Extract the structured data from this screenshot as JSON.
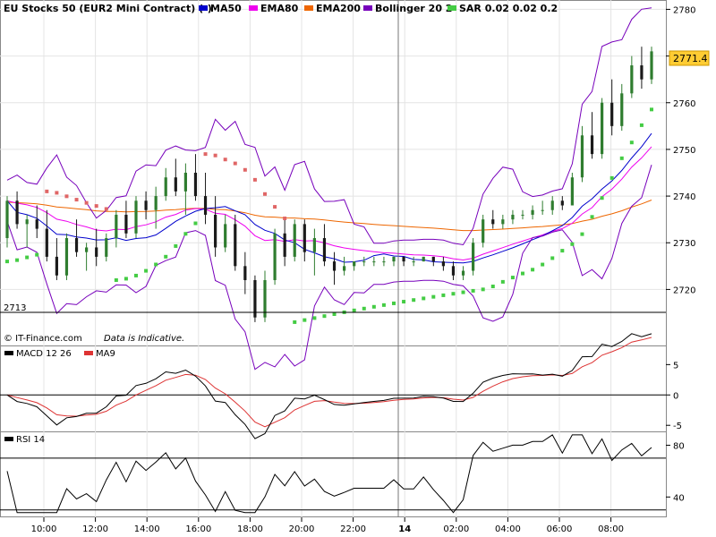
{
  "header": {
    "instrument": "EU Stocks 50 (EUR2 Mini Contract) (-)",
    "legend": [
      {
        "label": "MA50",
        "color": "#0000cc"
      },
      {
        "label": "EMA80",
        "color": "#ee00ee"
      },
      {
        "label": "EMA200",
        "color": "#ee6600"
      },
      {
        "label": "Bollinger 20 2",
        "color": "#7700bb"
      },
      {
        "label": "SAR 0.02 0.02 0.2",
        "color": "#44cc44"
      }
    ]
  },
  "footer": {
    "copyright": "© IT-Finance.com",
    "disclaimer": "Data is Indicative."
  },
  "colors": {
    "bg": "#ffffff",
    "panel_border": "#888888",
    "grid": "#e4e4e4",
    "up": "#2f7d2f",
    "down": "#1a1a1a",
    "sar_up": "#44cc44",
    "sar_down": "#e06666",
    "ma50": "#0000cc",
    "ema80": "#ee00ee",
    "ema200": "#ee6600",
    "bollinger": "#7700bb",
    "macd": "#000000",
    "ma9": "#dd3333",
    "rsi": "#000000",
    "price_tag_bg": "#ffcc33"
  },
  "chart_data": [
    {
      "type": "candlestick",
      "title": "EU Stocks 50 (EUR2 Mini Contract) (-)",
      "ylim": [
        2708,
        2782
      ],
      "yticks": [
        2720,
        2730,
        2740,
        2750,
        2760,
        2770,
        2780
      ],
      "x_ticks": [
        "10:00",
        "12:00",
        "14:00",
        "16:00",
        "18:00",
        "20:00",
        "22:00",
        "14",
        "02:00",
        "04:00",
        "06:00",
        "08:00"
      ],
      "last_price": "2771.4",
      "low_marker": {
        "value": 2713,
        "label": "2713"
      },
      "candles": [
        {
          "o": 2731,
          "h": 2740,
          "l": 2729,
          "c": 2739
        },
        {
          "o": 2739,
          "h": 2741,
          "l": 2733,
          "c": 2734
        },
        {
          "o": 2734,
          "h": 2736,
          "l": 2729,
          "c": 2735
        },
        {
          "o": 2735,
          "h": 2738,
          "l": 2731,
          "c": 2733
        },
        {
          "o": 2733,
          "h": 2737,
          "l": 2726,
          "c": 2727
        },
        {
          "o": 2727,
          "h": 2731,
          "l": 2722,
          "c": 2723
        },
        {
          "o": 2723,
          "h": 2732,
          "l": 2722,
          "c": 2731
        },
        {
          "o": 2731,
          "h": 2735,
          "l": 2727,
          "c": 2728
        },
        {
          "o": 2728,
          "h": 2730,
          "l": 2724,
          "c": 2729
        },
        {
          "o": 2729,
          "h": 2733,
          "l": 2725,
          "c": 2727
        },
        {
          "o": 2727,
          "h": 2732,
          "l": 2726,
          "c": 2731
        },
        {
          "o": 2731,
          "h": 2737,
          "l": 2729,
          "c": 2736
        },
        {
          "o": 2736,
          "h": 2739,
          "l": 2731,
          "c": 2732
        },
        {
          "o": 2732,
          "h": 2740,
          "l": 2731,
          "c": 2739
        },
        {
          "o": 2739,
          "h": 2741,
          "l": 2735,
          "c": 2737
        },
        {
          "o": 2737,
          "h": 2742,
          "l": 2733,
          "c": 2740
        },
        {
          "o": 2740,
          "h": 2746,
          "l": 2739,
          "c": 2744
        },
        {
          "o": 2744,
          "h": 2748,
          "l": 2740,
          "c": 2741
        },
        {
          "o": 2741,
          "h": 2747,
          "l": 2736,
          "c": 2745
        },
        {
          "o": 2745,
          "h": 2749,
          "l": 2739,
          "c": 2740
        },
        {
          "o": 2740,
          "h": 2745,
          "l": 2734,
          "c": 2736
        },
        {
          "o": 2736,
          "h": 2740,
          "l": 2727,
          "c": 2729
        },
        {
          "o": 2729,
          "h": 2736,
          "l": 2728,
          "c": 2734
        },
        {
          "o": 2734,
          "h": 2736,
          "l": 2724,
          "c": 2725
        },
        {
          "o": 2725,
          "h": 2728,
          "l": 2719,
          "c": 2722
        },
        {
          "o": 2722,
          "h": 2723,
          "l": 2713,
          "c": 2714
        },
        {
          "o": 2714,
          "h": 2724,
          "l": 2713,
          "c": 2722
        },
        {
          "o": 2722,
          "h": 2733,
          "l": 2721,
          "c": 2732
        },
        {
          "o": 2732,
          "h": 2735,
          "l": 2725,
          "c": 2727
        },
        {
          "o": 2727,
          "h": 2735,
          "l": 2726,
          "c": 2734
        },
        {
          "o": 2734,
          "h": 2735,
          "l": 2726,
          "c": 2728
        },
        {
          "o": 2728,
          "h": 2733,
          "l": 2723,
          "c": 2731
        },
        {
          "o": 2731,
          "h": 2734,
          "l": 2725,
          "c": 2726
        },
        {
          "o": 2726,
          "h": 2728,
          "l": 2721,
          "c": 2724
        },
        {
          "o": 2724,
          "h": 2727,
          "l": 2723,
          "c": 2725
        },
        {
          "o": 2725,
          "h": 2726,
          "l": 2724,
          "c": 2726
        },
        {
          "o": 2726,
          "h": 2727,
          "l": 2725,
          "c": 2726
        },
        {
          "o": 2726,
          "h": 2727,
          "l": 2725,
          "c": 2726
        },
        {
          "o": 2726,
          "h": 2727,
          "l": 2725,
          "c": 2726
        },
        {
          "o": 2726,
          "h": 2727,
          "l": 2725,
          "c": 2727
        },
        {
          "o": 2727,
          "h": 2727,
          "l": 2725,
          "c": 2726
        },
        {
          "o": 2726,
          "h": 2727,
          "l": 2725,
          "c": 2726
        },
        {
          "o": 2726,
          "h": 2727,
          "l": 2726,
          "c": 2727
        },
        {
          "o": 2727,
          "h": 2727,
          "l": 2725,
          "c": 2726
        },
        {
          "o": 2726,
          "h": 2727,
          "l": 2724,
          "c": 2725
        },
        {
          "o": 2725,
          "h": 2726,
          "l": 2722,
          "c": 2723
        },
        {
          "o": 2723,
          "h": 2725,
          "l": 2722,
          "c": 2724
        },
        {
          "o": 2724,
          "h": 2731,
          "l": 2723,
          "c": 2730
        },
        {
          "o": 2730,
          "h": 2736,
          "l": 2729,
          "c": 2735
        },
        {
          "o": 2735,
          "h": 2737,
          "l": 2733,
          "c": 2734
        },
        {
          "o": 2734,
          "h": 2736,
          "l": 2733,
          "c": 2735
        },
        {
          "o": 2735,
          "h": 2737,
          "l": 2734,
          "c": 2736
        },
        {
          "o": 2736,
          "h": 2737,
          "l": 2735,
          "c": 2736
        },
        {
          "o": 2736,
          "h": 2738,
          "l": 2735,
          "c": 2737
        },
        {
          "o": 2737,
          "h": 2739,
          "l": 2736,
          "c": 2737
        },
        {
          "o": 2737,
          "h": 2740,
          "l": 2736,
          "c": 2739
        },
        {
          "o": 2739,
          "h": 2740,
          "l": 2737,
          "c": 2738
        },
        {
          "o": 2738,
          "h": 2745,
          "l": 2738,
          "c": 2744
        },
        {
          "o": 2744,
          "h": 2755,
          "l": 2743,
          "c": 2753
        },
        {
          "o": 2753,
          "h": 2758,
          "l": 2748,
          "c": 2749
        },
        {
          "o": 2749,
          "h": 2761,
          "l": 2748,
          "c": 2760
        },
        {
          "o": 2760,
          "h": 2765,
          "l": 2753,
          "c": 2755
        },
        {
          "o": 2755,
          "h": 2764,
          "l": 2754,
          "c": 2762
        },
        {
          "o": 2762,
          "h": 2770,
          "l": 2761,
          "c": 2768
        },
        {
          "o": 2768,
          "h": 2772,
          "l": 2763,
          "c": 2765
        },
        {
          "o": 2765,
          "h": 2772,
          "l": 2764,
          "c": 2771
        }
      ]
    },
    {
      "type": "line",
      "title": "MACD 12 26",
      "series_names": [
        "MACD 12 26",
        "MA9"
      ],
      "ylim": [
        -6,
        8
      ],
      "yticks": [
        {
          "v": 5,
          "label": "5"
        },
        {
          "v": 0,
          "label": "0"
        },
        {
          "v": -5,
          "label": "-5"
        }
      ]
    },
    {
      "type": "line",
      "title": "RSI 14",
      "ylim": [
        25,
        90
      ],
      "yticks": [
        {
          "v": 80,
          "label": "80"
        },
        {
          "v": 40,
          "label": "40"
        }
      ],
      "levels": [
        70,
        30
      ]
    }
  ]
}
